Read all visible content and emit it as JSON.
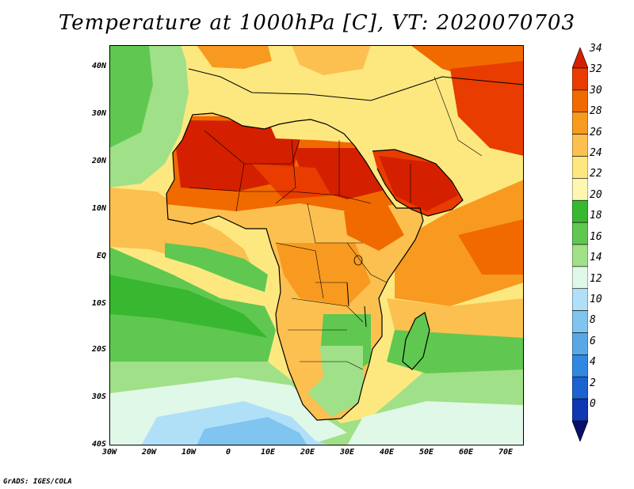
{
  "title": "Temperature at 1000hPa [C], VT: 2020070703",
  "credit": "GrADS: IGES/COLA",
  "lat_labels": [
    "40N",
    "30N",
    "20N",
    "10N",
    "EQ",
    "10S",
    "20S",
    "30S",
    "40S"
  ],
  "lon_labels": [
    "30W",
    "20W",
    "10W",
    "0",
    "10E",
    "20E",
    "30E",
    "40E",
    "50E",
    "60E",
    "70E"
  ],
  "colorbar": {
    "labels": [
      "34",
      "32",
      "30",
      "28",
      "26",
      "24",
      "22",
      "20",
      "18",
      "16",
      "14",
      "12",
      "10",
      "8",
      "6",
      "4",
      "2",
      "0"
    ],
    "colors": [
      "#d42000",
      "#e83c00",
      "#f06a00",
      "#f89a20",
      "#fcc050",
      "#fde880",
      "#fff6b0",
      "#38b830",
      "#60c850",
      "#a0e088",
      "#e0f8e8",
      "#b0e0f8",
      "#80c4f0",
      "#58a8e8",
      "#3088e0",
      "#1c62d0",
      "#1038b0",
      "#08106a"
    ],
    "range": [
      0,
      34
    ],
    "step": 2
  },
  "chart_data": {
    "type": "heatmap",
    "variable": "Temperature at 1000hPa",
    "units": "C",
    "valid_time": "2020070703",
    "lon_range": [
      -30,
      75
    ],
    "lat_range": [
      -40,
      45
    ],
    "colorbar_levels": [
      0,
      2,
      4,
      6,
      8,
      10,
      12,
      14,
      16,
      18,
      20,
      22,
      24,
      26,
      28,
      30,
      32,
      34
    ],
    "approx_region_values": [
      {
        "region": "Sahara / Sahel",
        "value": 32
      },
      {
        "region": "Arabian Peninsula",
        "value": 32
      },
      {
        "region": "Iran / Middle East",
        "value": 32
      },
      {
        "region": "Central Africa",
        "value": 26
      },
      {
        "region": "Southern Africa",
        "value": 20
      },
      {
        "region": "Gulf of Guinea ocean",
        "value": 24
      },
      {
        "region": "South Atlantic",
        "value": 18
      },
      {
        "region": "Southern Indian Ocean",
        "value": 20
      },
      {
        "region": "Far south ocean (40S)",
        "value": 14
      },
      {
        "region": "Northern Indian Ocean",
        "value": 28
      },
      {
        "region": "Eastern North Atlantic",
        "value": 20
      }
    ]
  }
}
